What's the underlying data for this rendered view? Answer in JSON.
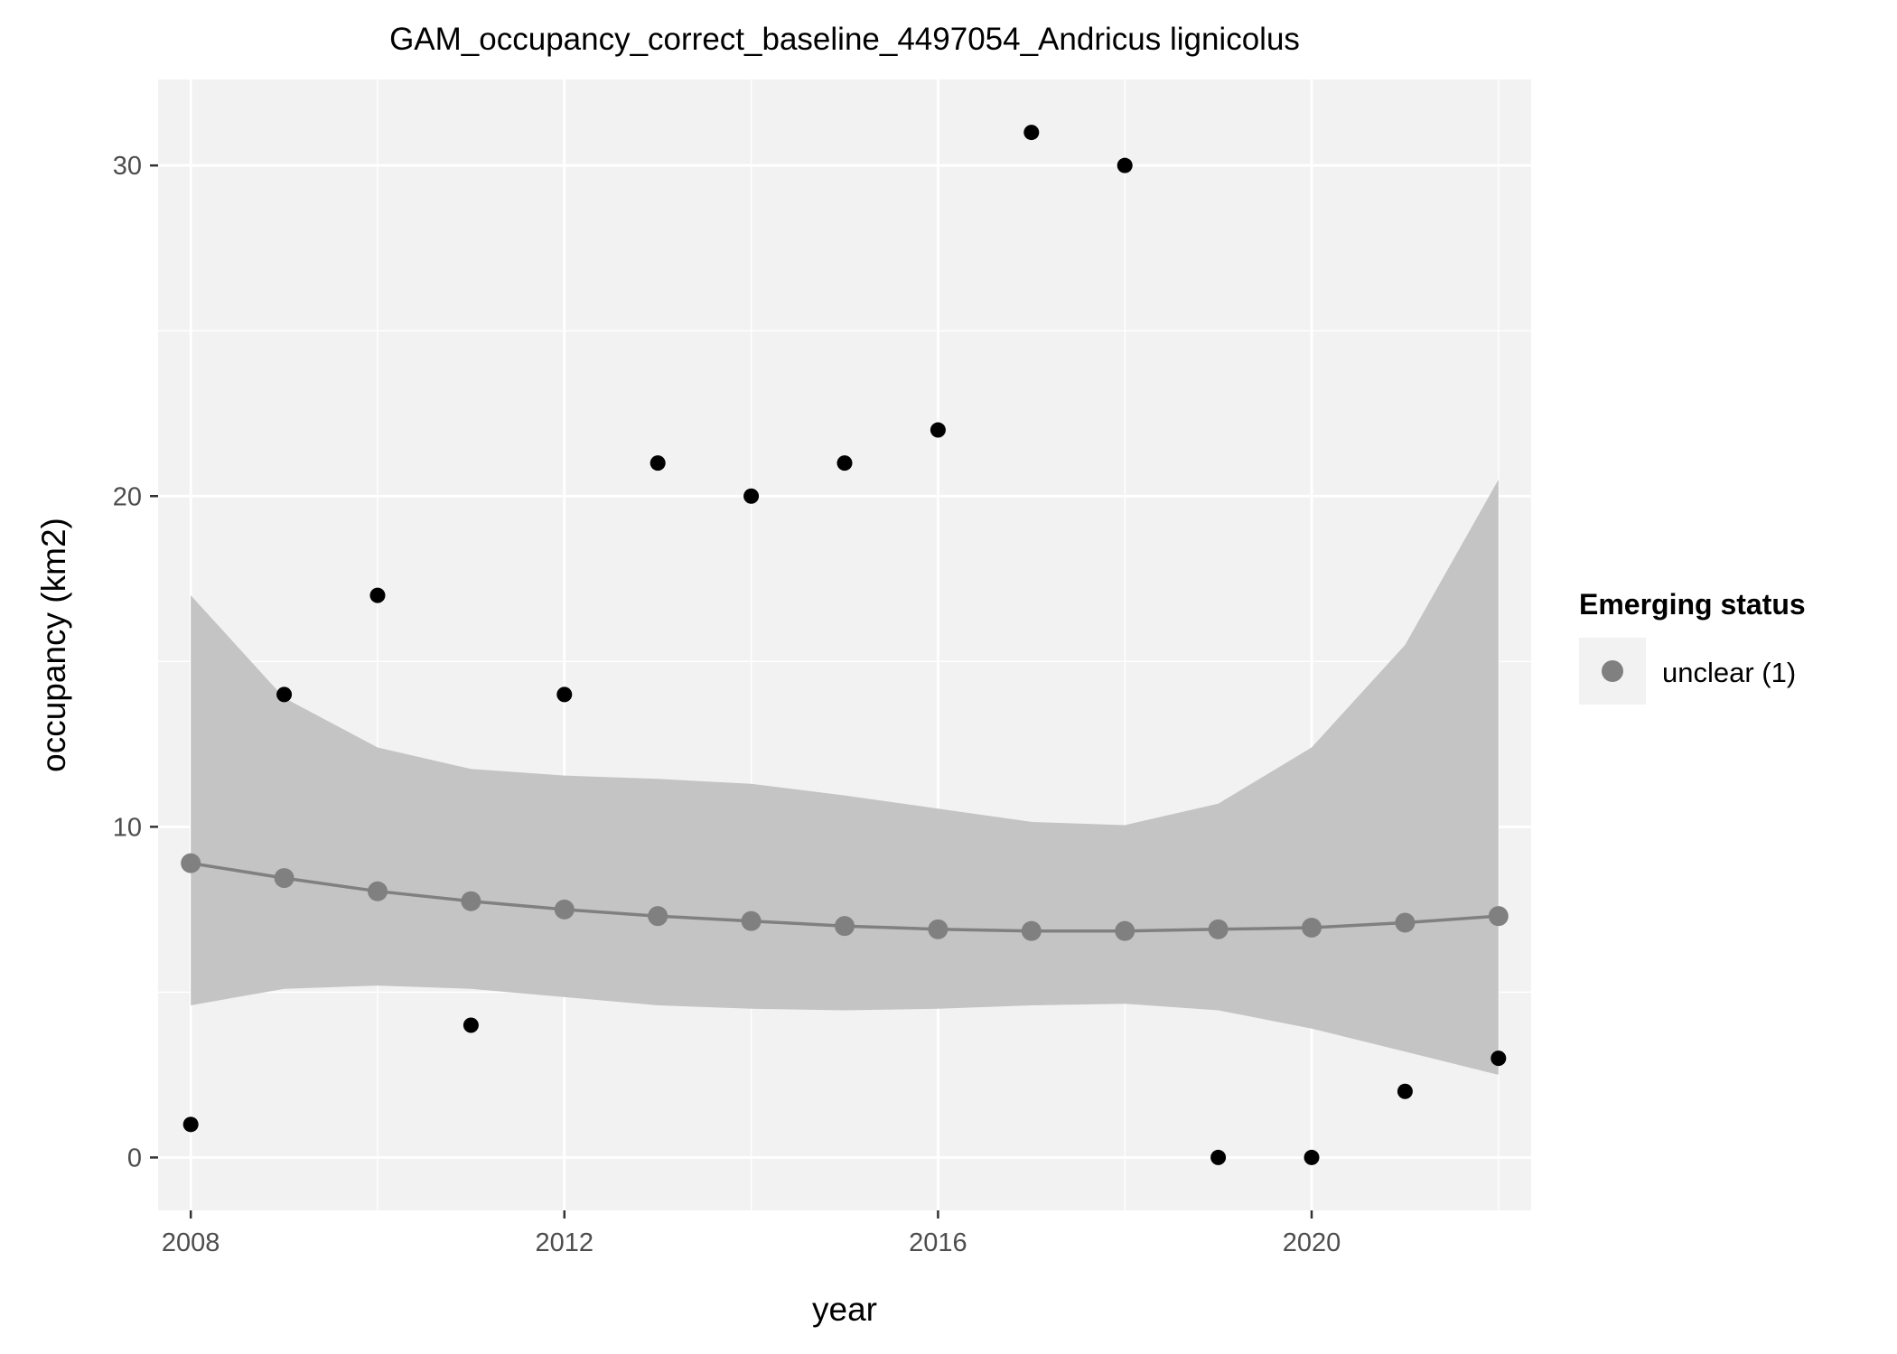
{
  "chart_data": {
    "type": "scatter",
    "title": "GAM_occupancy_correct_baseline_4497054_Andricus lignicolus",
    "xlabel": "year",
    "ylabel": "occupancy (km2)",
    "xlim": [
      2007.65,
      2022.35
    ],
    "ylim": [
      -1.6,
      32.6
    ],
    "x_ticks": [
      2008,
      2012,
      2016,
      2020
    ],
    "y_ticks": [
      0,
      10,
      20,
      30
    ],
    "grid": true,
    "observed": {
      "x": [
        2008,
        2009,
        2010,
        2011,
        2012,
        2013,
        2014,
        2015,
        2016,
        2017,
        2018,
        2019,
        2020,
        2021,
        2022
      ],
      "y": [
        1,
        14,
        17,
        4,
        14,
        21,
        20,
        21,
        22,
        31,
        30,
        0,
        0,
        2,
        3
      ]
    },
    "fitted": {
      "x": [
        2008,
        2009,
        2010,
        2011,
        2012,
        2013,
        2014,
        2015,
        2016,
        2017,
        2018,
        2019,
        2020,
        2021,
        2022
      ],
      "y": [
        8.9,
        8.45,
        8.05,
        7.75,
        7.5,
        7.3,
        7.15,
        7.0,
        6.9,
        6.85,
        6.85,
        6.9,
        6.95,
        7.1,
        7.3
      ],
      "lower": [
        4.6,
        5.1,
        5.2,
        5.1,
        4.85,
        4.6,
        4.5,
        4.45,
        4.5,
        4.6,
        4.65,
        4.45,
        3.9,
        3.2,
        2.5
      ],
      "upper": [
        17.0,
        13.9,
        12.4,
        11.75,
        11.55,
        11.45,
        11.3,
        10.95,
        10.55,
        10.15,
        10.05,
        10.7,
        12.4,
        15.5,
        20.5
      ]
    },
    "legend": {
      "title": "Emerging status",
      "entries": [
        "unclear (1)"
      ],
      "position": "right"
    },
    "colors": {
      "panel": "#f2f2f2",
      "grid": "#ffffff",
      "ribbon": "#c4c4c4",
      "fit": "#808080",
      "points": "#000000"
    }
  }
}
